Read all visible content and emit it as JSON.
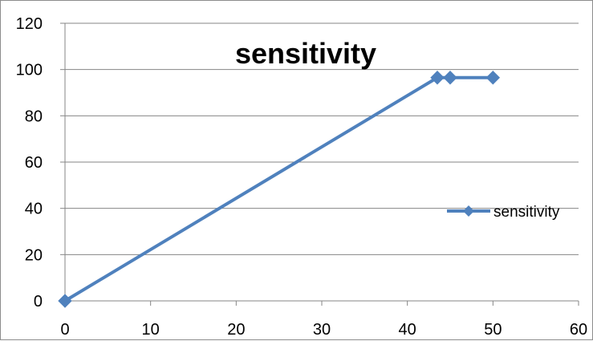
{
  "chart_data": {
    "type": "line",
    "title": "sensitivity",
    "xlabel": "",
    "ylabel": "",
    "xlim": [
      0,
      60
    ],
    "ylim": [
      0,
      120
    ],
    "x_ticks": [
      0,
      10,
      20,
      30,
      40,
      50,
      60
    ],
    "y_ticks": [
      0,
      20,
      40,
      60,
      80,
      100,
      120
    ],
    "grid": "horizontal",
    "legend_position": "right",
    "series": [
      {
        "name": "sensitivity",
        "color": "#4f81bd",
        "marker": "diamond",
        "points": [
          {
            "x": 0,
            "y": 0
          },
          {
            "x": 43.5,
            "y": 96.5
          },
          {
            "x": 45,
            "y": 96.5
          },
          {
            "x": 50,
            "y": 96.5
          }
        ]
      }
    ]
  }
}
